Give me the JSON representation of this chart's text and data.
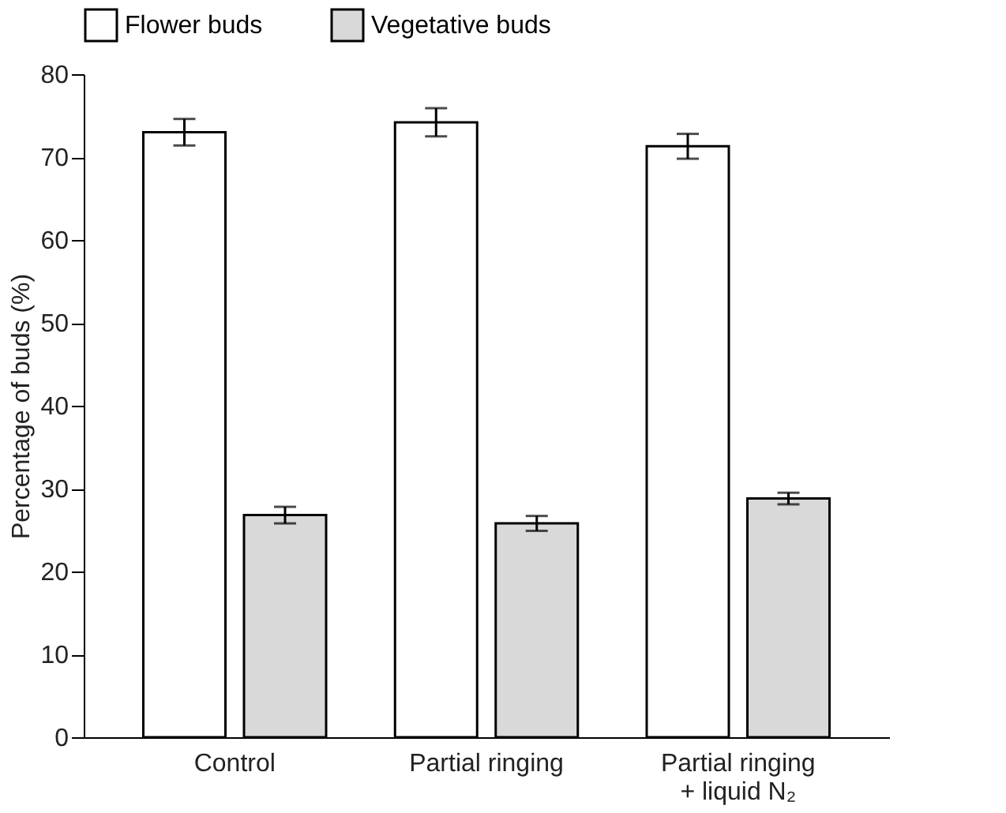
{
  "chart_data": {
    "type": "bar",
    "ylabel": "Percentage of buds (%)",
    "categories": [
      "Control",
      "Partial ringing",
      "Partial ringing\n+ liquid N₂"
    ],
    "series": [
      {
        "name": "Flower buds",
        "color": "#ffffff",
        "values": [
          73.0,
          74.2,
          71.3
        ],
        "errors": [
          1.6,
          1.7,
          1.5
        ]
      },
      {
        "name": "Vegetative buds",
        "color": "#d9d9d9",
        "values": [
          26.8,
          25.8,
          28.8
        ],
        "errors": [
          1.0,
          0.9,
          0.7
        ]
      }
    ],
    "ylim": [
      0,
      80
    ],
    "yticks": [
      0,
      10,
      20,
      30,
      40,
      50,
      60,
      70,
      80
    ],
    "grid": false,
    "legend": "top"
  }
}
